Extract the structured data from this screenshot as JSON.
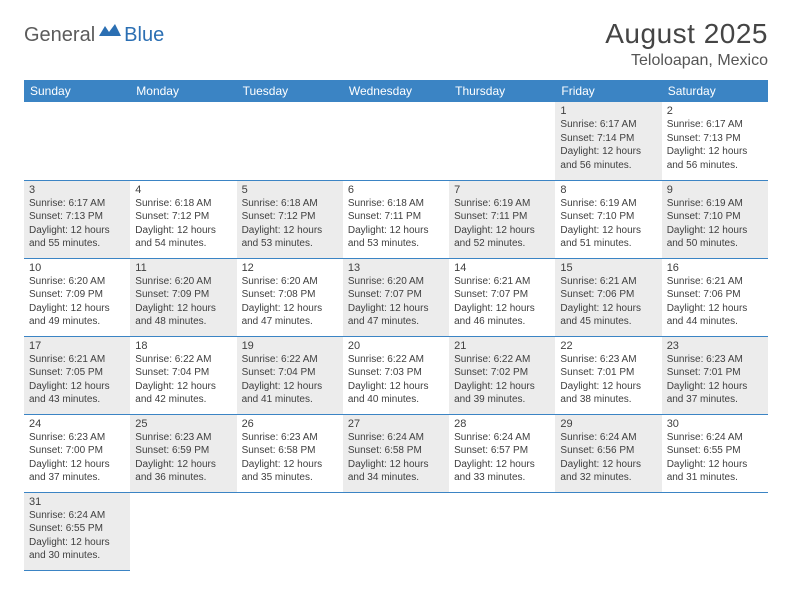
{
  "logo": {
    "general": "General",
    "blue": "Blue"
  },
  "title": "August 2025",
  "location": "Teloloapan, Mexico",
  "weekdays": [
    "Sunday",
    "Monday",
    "Tuesday",
    "Wednesday",
    "Thursday",
    "Friday",
    "Saturday"
  ],
  "colors": {
    "header_bg": "#3b84c4",
    "header_text": "#ffffff",
    "cell_border": "#3b84c4",
    "shaded_bg": "#ececec",
    "text": "#404040",
    "title_text": "#454545",
    "logo_gray": "#5b5b5b",
    "logo_blue": "#2b6fb3"
  },
  "grid": [
    [
      {
        "blank": true
      },
      {
        "blank": true
      },
      {
        "blank": true
      },
      {
        "blank": true
      },
      {
        "blank": true
      },
      {
        "day": "1",
        "shaded": true,
        "sunrise": "Sunrise: 6:17 AM",
        "sunset": "Sunset: 7:14 PM",
        "daylight": "Daylight: 12 hours and 56 minutes."
      },
      {
        "day": "2",
        "shaded": false,
        "sunrise": "Sunrise: 6:17 AM",
        "sunset": "Sunset: 7:13 PM",
        "daylight": "Daylight: 12 hours and 56 minutes."
      }
    ],
    [
      {
        "day": "3",
        "shaded": true,
        "sunrise": "Sunrise: 6:17 AM",
        "sunset": "Sunset: 7:13 PM",
        "daylight": "Daylight: 12 hours and 55 minutes."
      },
      {
        "day": "4",
        "shaded": false,
        "sunrise": "Sunrise: 6:18 AM",
        "sunset": "Sunset: 7:12 PM",
        "daylight": "Daylight: 12 hours and 54 minutes."
      },
      {
        "day": "5",
        "shaded": true,
        "sunrise": "Sunrise: 6:18 AM",
        "sunset": "Sunset: 7:12 PM",
        "daylight": "Daylight: 12 hours and 53 minutes."
      },
      {
        "day": "6",
        "shaded": false,
        "sunrise": "Sunrise: 6:18 AM",
        "sunset": "Sunset: 7:11 PM",
        "daylight": "Daylight: 12 hours and 53 minutes."
      },
      {
        "day": "7",
        "shaded": true,
        "sunrise": "Sunrise: 6:19 AM",
        "sunset": "Sunset: 7:11 PM",
        "daylight": "Daylight: 12 hours and 52 minutes."
      },
      {
        "day": "8",
        "shaded": false,
        "sunrise": "Sunrise: 6:19 AM",
        "sunset": "Sunset: 7:10 PM",
        "daylight": "Daylight: 12 hours and 51 minutes."
      },
      {
        "day": "9",
        "shaded": true,
        "sunrise": "Sunrise: 6:19 AM",
        "sunset": "Sunset: 7:10 PM",
        "daylight": "Daylight: 12 hours and 50 minutes."
      }
    ],
    [
      {
        "day": "10",
        "shaded": false,
        "sunrise": "Sunrise: 6:20 AM",
        "sunset": "Sunset: 7:09 PM",
        "daylight": "Daylight: 12 hours and 49 minutes."
      },
      {
        "day": "11",
        "shaded": true,
        "sunrise": "Sunrise: 6:20 AM",
        "sunset": "Sunset: 7:09 PM",
        "daylight": "Daylight: 12 hours and 48 minutes."
      },
      {
        "day": "12",
        "shaded": false,
        "sunrise": "Sunrise: 6:20 AM",
        "sunset": "Sunset: 7:08 PM",
        "daylight": "Daylight: 12 hours and 47 minutes."
      },
      {
        "day": "13",
        "shaded": true,
        "sunrise": "Sunrise: 6:20 AM",
        "sunset": "Sunset: 7:07 PM",
        "daylight": "Daylight: 12 hours and 47 minutes."
      },
      {
        "day": "14",
        "shaded": false,
        "sunrise": "Sunrise: 6:21 AM",
        "sunset": "Sunset: 7:07 PM",
        "daylight": "Daylight: 12 hours and 46 minutes."
      },
      {
        "day": "15",
        "shaded": true,
        "sunrise": "Sunrise: 6:21 AM",
        "sunset": "Sunset: 7:06 PM",
        "daylight": "Daylight: 12 hours and 45 minutes."
      },
      {
        "day": "16",
        "shaded": false,
        "sunrise": "Sunrise: 6:21 AM",
        "sunset": "Sunset: 7:06 PM",
        "daylight": "Daylight: 12 hours and 44 minutes."
      }
    ],
    [
      {
        "day": "17",
        "shaded": true,
        "sunrise": "Sunrise: 6:21 AM",
        "sunset": "Sunset: 7:05 PM",
        "daylight": "Daylight: 12 hours and 43 minutes."
      },
      {
        "day": "18",
        "shaded": false,
        "sunrise": "Sunrise: 6:22 AM",
        "sunset": "Sunset: 7:04 PM",
        "daylight": "Daylight: 12 hours and 42 minutes."
      },
      {
        "day": "19",
        "shaded": true,
        "sunrise": "Sunrise: 6:22 AM",
        "sunset": "Sunset: 7:04 PM",
        "daylight": "Daylight: 12 hours and 41 minutes."
      },
      {
        "day": "20",
        "shaded": false,
        "sunrise": "Sunrise: 6:22 AM",
        "sunset": "Sunset: 7:03 PM",
        "daylight": "Daylight: 12 hours and 40 minutes."
      },
      {
        "day": "21",
        "shaded": true,
        "sunrise": "Sunrise: 6:22 AM",
        "sunset": "Sunset: 7:02 PM",
        "daylight": "Daylight: 12 hours and 39 minutes."
      },
      {
        "day": "22",
        "shaded": false,
        "sunrise": "Sunrise: 6:23 AM",
        "sunset": "Sunset: 7:01 PM",
        "daylight": "Daylight: 12 hours and 38 minutes."
      },
      {
        "day": "23",
        "shaded": true,
        "sunrise": "Sunrise: 6:23 AM",
        "sunset": "Sunset: 7:01 PM",
        "daylight": "Daylight: 12 hours and 37 minutes."
      }
    ],
    [
      {
        "day": "24",
        "shaded": false,
        "sunrise": "Sunrise: 6:23 AM",
        "sunset": "Sunset: 7:00 PM",
        "daylight": "Daylight: 12 hours and 37 minutes."
      },
      {
        "day": "25",
        "shaded": true,
        "sunrise": "Sunrise: 6:23 AM",
        "sunset": "Sunset: 6:59 PM",
        "daylight": "Daylight: 12 hours and 36 minutes."
      },
      {
        "day": "26",
        "shaded": false,
        "sunrise": "Sunrise: 6:23 AM",
        "sunset": "Sunset: 6:58 PM",
        "daylight": "Daylight: 12 hours and 35 minutes."
      },
      {
        "day": "27",
        "shaded": true,
        "sunrise": "Sunrise: 6:24 AM",
        "sunset": "Sunset: 6:58 PM",
        "daylight": "Daylight: 12 hours and 34 minutes."
      },
      {
        "day": "28",
        "shaded": false,
        "sunrise": "Sunrise: 6:24 AM",
        "sunset": "Sunset: 6:57 PM",
        "daylight": "Daylight: 12 hours and 33 minutes."
      },
      {
        "day": "29",
        "shaded": true,
        "sunrise": "Sunrise: 6:24 AM",
        "sunset": "Sunset: 6:56 PM",
        "daylight": "Daylight: 12 hours and 32 minutes."
      },
      {
        "day": "30",
        "shaded": false,
        "sunrise": "Sunrise: 6:24 AM",
        "sunset": "Sunset: 6:55 PM",
        "daylight": "Daylight: 12 hours and 31 minutes."
      }
    ],
    [
      {
        "day": "31",
        "shaded": true,
        "sunrise": "Sunrise: 6:24 AM",
        "sunset": "Sunset: 6:55 PM",
        "daylight": "Daylight: 12 hours and 30 minutes."
      },
      {
        "void": true
      },
      {
        "void": true
      },
      {
        "void": true
      },
      {
        "void": true
      },
      {
        "void": true
      },
      {
        "void": true
      }
    ]
  ]
}
